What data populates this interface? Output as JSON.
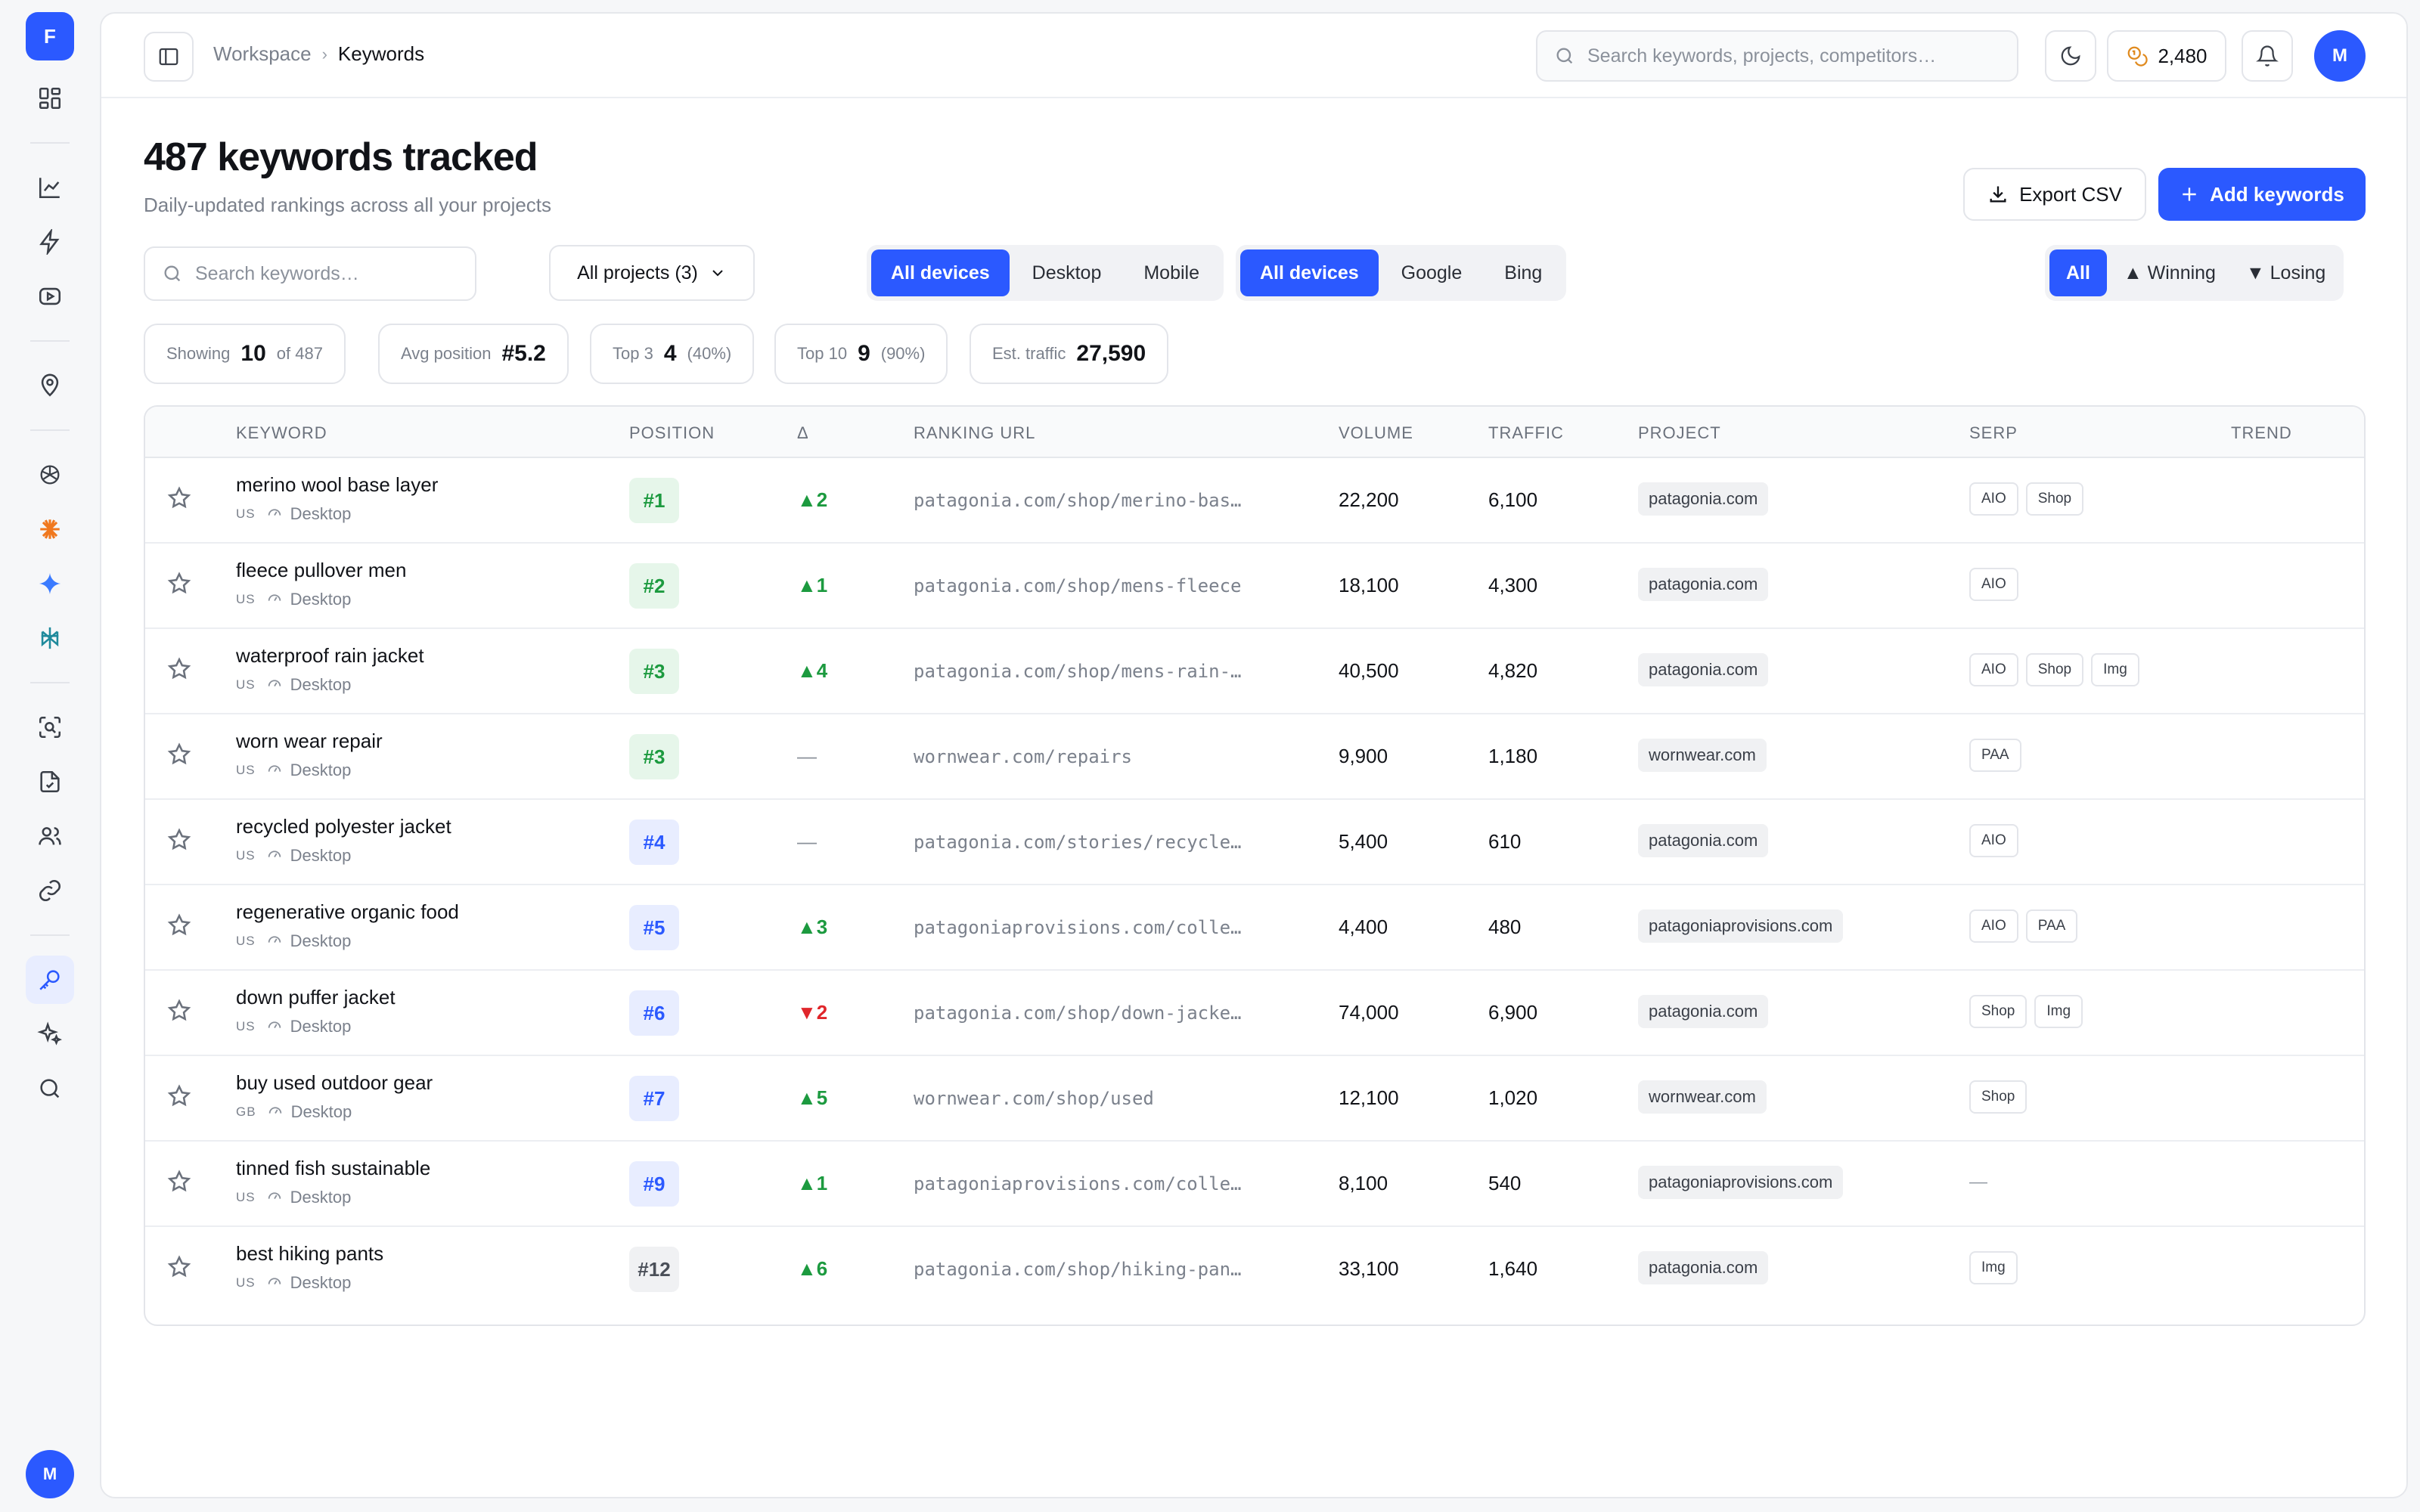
{
  "app": {
    "logo_letter": "F",
    "user_initial": "M"
  },
  "rail": {
    "items": [
      {
        "name": "dashboard-icon",
        "active": false
      },
      {
        "name": "chart-line-icon",
        "active": false
      },
      {
        "name": "lightning-icon",
        "active": false
      },
      {
        "name": "video-icon",
        "active": false
      },
      {
        "name": "map-pin-icon",
        "active": false
      },
      {
        "name": "openai-icon",
        "active": false
      },
      {
        "name": "claude-icon",
        "active": false
      },
      {
        "name": "gemini-icon",
        "active": false
      },
      {
        "name": "perplexity-icon",
        "active": false
      },
      {
        "name": "scan-search-icon",
        "active": false
      },
      {
        "name": "file-check-icon",
        "active": false
      },
      {
        "name": "users-icon",
        "active": false
      },
      {
        "name": "link-icon",
        "active": false
      },
      {
        "name": "key-icon",
        "active": true
      },
      {
        "name": "sparkles-icon",
        "active": false
      },
      {
        "name": "search-icon",
        "active": false
      }
    ]
  },
  "topbar": {
    "breadcrumb": [
      "Workspace",
      "Keywords"
    ],
    "search_placeholder": "Search keywords, projects, competitors…",
    "credits": "2,480"
  },
  "page": {
    "title": "487 keywords tracked",
    "subtitle": "Daily-updated rankings across all your projects",
    "export_label": "Export CSV",
    "add_label": "Add keywords"
  },
  "filters": {
    "search_placeholder": "Search keywords…",
    "projects_label": "All projects (3)",
    "devices": [
      "All devices",
      "Desktop",
      "Mobile"
    ],
    "engines": [
      "All devices",
      "Google",
      "Bing"
    ],
    "trend": [
      "All",
      "▲ Winning",
      "▼ Losing"
    ]
  },
  "stats": {
    "showing": {
      "label": "Showing",
      "value": "10",
      "sub": "of 487"
    },
    "avg": {
      "label": "Avg position",
      "value": "#5.2"
    },
    "top3": {
      "label": "Top 3",
      "value": "4",
      "sub": "(40%)"
    },
    "top10": {
      "label": "Top 10",
      "value": "9",
      "sub": "(90%)"
    },
    "traffic": {
      "label": "Est. traffic",
      "value": "27,590"
    }
  },
  "table": {
    "columns": [
      "KEYWORD",
      "POSITION",
      "Δ",
      "RANKING URL",
      "VOLUME",
      "TRAFFIC",
      "PROJECT",
      "SERP",
      "TREND"
    ],
    "rows": [
      {
        "keyword": "merino wool base layer",
        "country": "US",
        "device": "Desktop",
        "position": "#1",
        "pos_color": "green",
        "delta": "▲2",
        "delta_dir": "up",
        "url": "patagonia.com/shop/merino-bas…",
        "volume": "22,200",
        "traffic": "6,100",
        "project": "patagonia.com",
        "serp": [
          "AIO",
          "Shop"
        ]
      },
      {
        "keyword": "fleece pullover men",
        "country": "US",
        "device": "Desktop",
        "position": "#2",
        "pos_color": "green",
        "delta": "▲1",
        "delta_dir": "up",
        "url": "patagonia.com/shop/mens-fleece",
        "volume": "18,100",
        "traffic": "4,300",
        "project": "patagonia.com",
        "serp": [
          "AIO"
        ]
      },
      {
        "keyword": "waterproof rain jacket",
        "country": "US",
        "device": "Desktop",
        "position": "#3",
        "pos_color": "green",
        "delta": "▲4",
        "delta_dir": "up",
        "url": "patagonia.com/shop/mens-rain-…",
        "volume": "40,500",
        "traffic": "4,820",
        "project": "patagonia.com",
        "serp": [
          "AIO",
          "Shop",
          "Img"
        ]
      },
      {
        "keyword": "worn wear repair",
        "country": "US",
        "device": "Desktop",
        "position": "#3",
        "pos_color": "green",
        "delta": "—",
        "delta_dir": "flat",
        "url": "wornwear.com/repairs",
        "volume": "9,900",
        "traffic": "1,180",
        "project": "wornwear.com",
        "serp": [
          "PAA"
        ]
      },
      {
        "keyword": "recycled polyester jacket",
        "country": "US",
        "device": "Desktop",
        "position": "#4",
        "pos_color": "blue",
        "delta": "—",
        "delta_dir": "flat",
        "url": "patagonia.com/stories/recycle…",
        "volume": "5,400",
        "traffic": "610",
        "project": "patagonia.com",
        "serp": [
          "AIO"
        ]
      },
      {
        "keyword": "regenerative organic food",
        "country": "US",
        "device": "Desktop",
        "position": "#5",
        "pos_color": "blue",
        "delta": "▲3",
        "delta_dir": "up",
        "url": "patagoniaprovisions.com/colle…",
        "volume": "4,400",
        "traffic": "480",
        "project": "patagoniaprovisions.com",
        "serp": [
          "AIO",
          "PAA"
        ]
      },
      {
        "keyword": "down puffer jacket",
        "country": "US",
        "device": "Desktop",
        "position": "#6",
        "pos_color": "blue",
        "delta": "▼2",
        "delta_dir": "down",
        "url": "patagonia.com/shop/down-jacke…",
        "volume": "74,000",
        "traffic": "6,900",
        "project": "patagonia.com",
        "serp": [
          "Shop",
          "Img"
        ]
      },
      {
        "keyword": "buy used outdoor gear",
        "country": "GB",
        "device": "Desktop",
        "position": "#7",
        "pos_color": "blue",
        "delta": "▲5",
        "delta_dir": "up",
        "url": "wornwear.com/shop/used",
        "volume": "12,100",
        "traffic": "1,020",
        "project": "wornwear.com",
        "serp": [
          "Shop"
        ]
      },
      {
        "keyword": "tinned fish sustainable",
        "country": "US",
        "device": "Desktop",
        "position": "#9",
        "pos_color": "blue",
        "delta": "▲1",
        "delta_dir": "up",
        "url": "patagoniaprovisions.com/colle…",
        "volume": "8,100",
        "traffic": "540",
        "project": "patagoniaprovisions.com",
        "serp": []
      },
      {
        "keyword": "best hiking pants",
        "country": "US",
        "device": "Desktop",
        "position": "#12",
        "pos_color": "gray",
        "delta": "▲6",
        "delta_dir": "up",
        "url": "patagonia.com/shop/hiking-pan…",
        "volume": "33,100",
        "traffic": "1,640",
        "project": "patagonia.com",
        "serp": [
          "Img"
        ]
      }
    ],
    "serp_empty": "—"
  },
  "colors": {
    "accent": "#2b59ff",
    "up": "#1c9a3f",
    "down": "#e0262b"
  }
}
